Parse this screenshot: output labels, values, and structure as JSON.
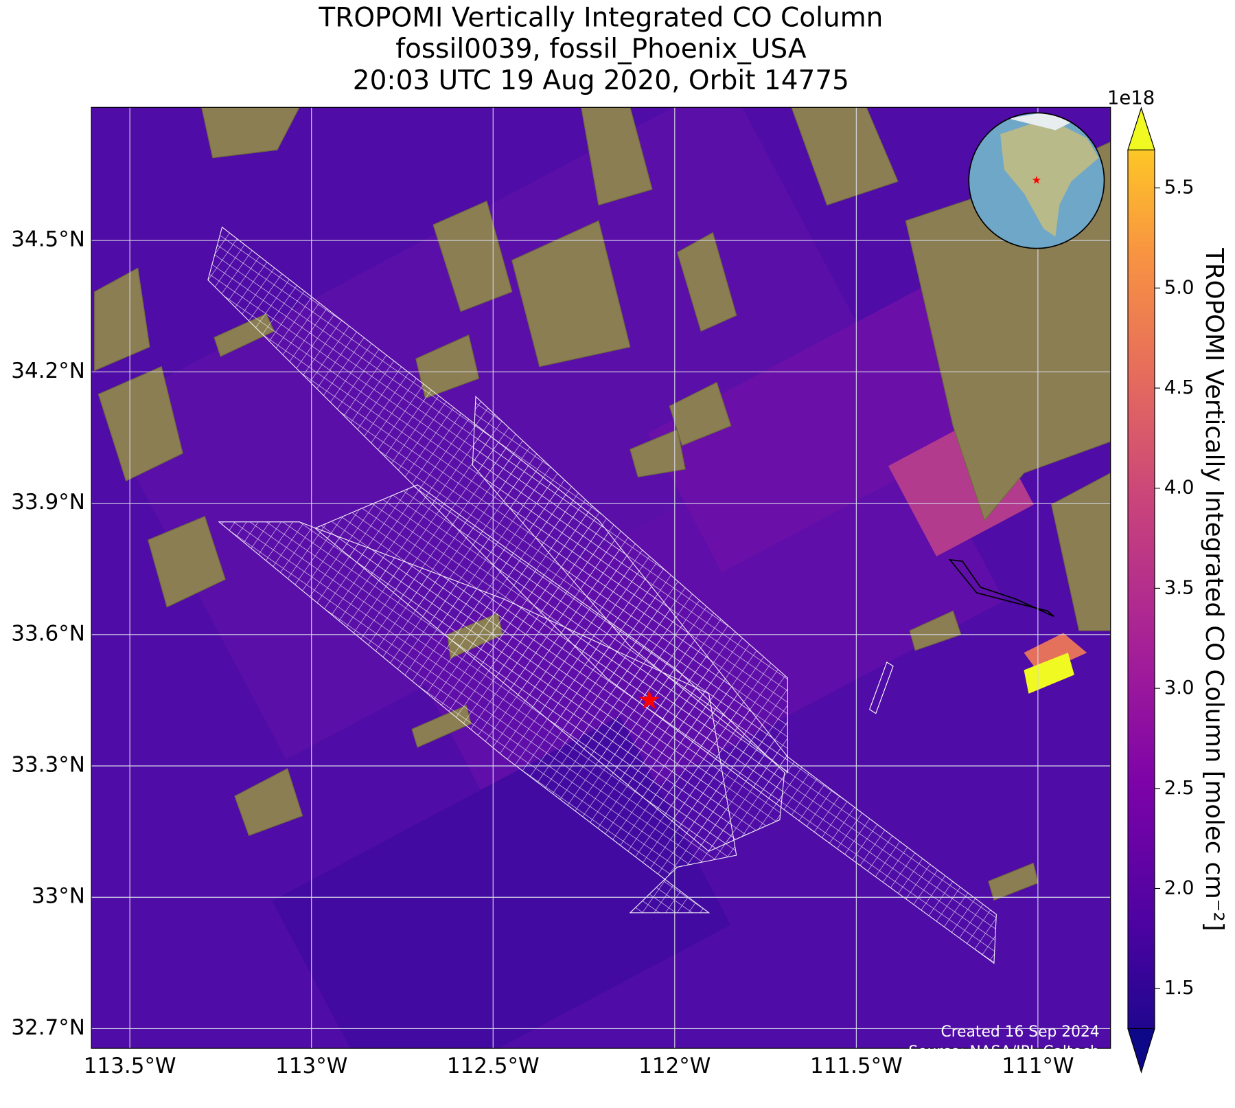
{
  "map": {
    "title": [
      "TROPOMI Vertically Integrated CO Column",
      "fossil0039, fossil_Phoenix_USA",
      "20:03 UTC 19 Aug 2020, Orbit 14775"
    ],
    "xlim": [
      -113.606,
      -110.8
    ],
    "ylim": [
      32.655,
      34.804
    ],
    "xticks": [
      {
        "value": -113.5,
        "label": "113.5°W"
      },
      {
        "value": -113,
        "label": "113°W"
      },
      {
        "value": -112.5,
        "label": "112.5°W"
      },
      {
        "value": -112,
        "label": "112°W"
      },
      {
        "value": -111.5,
        "label": "111.5°W"
      },
      {
        "value": -111,
        "label": "111°W"
      }
    ],
    "yticks": [
      {
        "value": 32.7,
        "label": "32.7°N"
      },
      {
        "value": 33,
        "label": "33°N"
      },
      {
        "value": 33.3,
        "label": "33.3°N"
      },
      {
        "value": 33.6,
        "label": "33.6°N"
      },
      {
        "value": 33.9,
        "label": "33.9°N"
      },
      {
        "value": 34.2,
        "label": "34.2°N"
      },
      {
        "value": 34.5,
        "label": "34.5°N"
      }
    ],
    "grid": true,
    "site": {
      "lon": -112.07,
      "lat": 33.45,
      "color": "#ff0000"
    },
    "colorbar": {
      "label": "TROPOMI Vertically Integrated CO Column [molec cm⁻²]",
      "multiplier": "1e18",
      "lim": [
        1.3,
        5.69
      ],
      "ticks": [
        1.5,
        {
          "value": 2,
          "label": "2.0"
        },
        2.5,
        {
          "value": 3,
          "label": "3.0"
        },
        3.5,
        {
          "value": 4,
          "label": "4.0"
        },
        4.5,
        {
          "value": 5,
          "label": "5.0"
        },
        5.5
      ]
    },
    "footer": [
      "Created 16 Sep 2024",
      "Source: NASA/JPL-Caltech"
    ]
  }
}
